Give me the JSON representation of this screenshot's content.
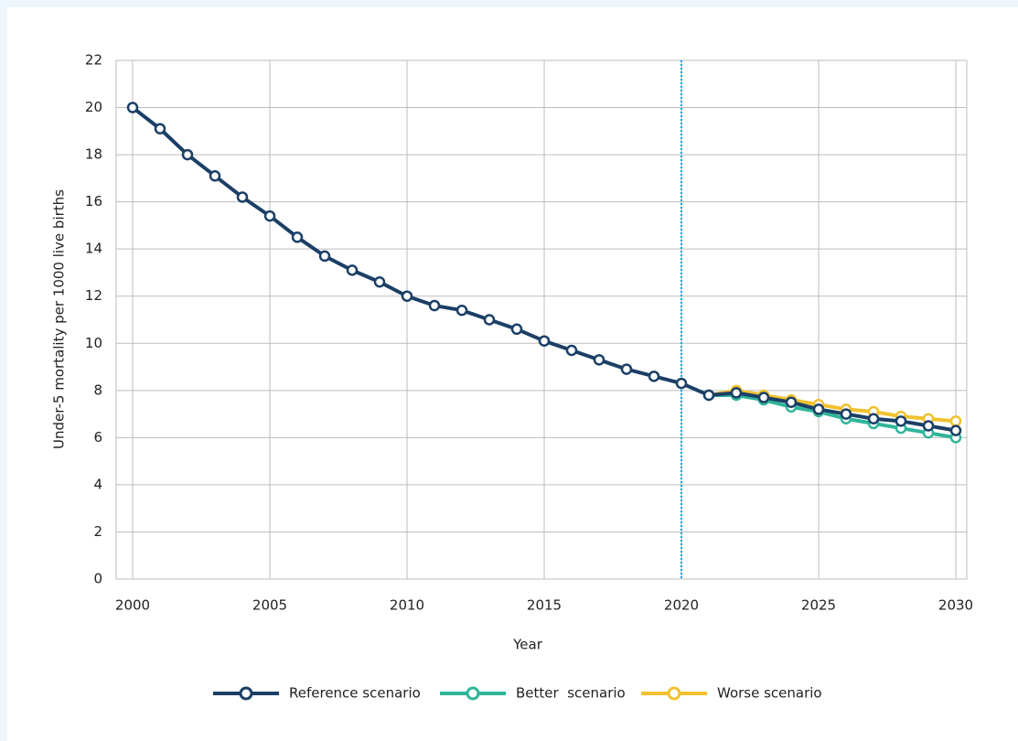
{
  "chart_data": {
    "type": "line",
    "x_label": "Year",
    "y_label": "Under-5 mortality per 1000 live births",
    "x": [
      2000,
      2001,
      2002,
      2003,
      2004,
      2005,
      2006,
      2007,
      2008,
      2009,
      2010,
      2011,
      2012,
      2013,
      2014,
      2015,
      2016,
      2017,
      2018,
      2019,
      2020,
      2021,
      2022,
      2023,
      2024,
      2025,
      2026,
      2027,
      2028,
      2029,
      2030
    ],
    "series": [
      {
        "name": "Worse scenario",
        "color": "#f2c12e",
        "values": [
          null,
          null,
          null,
          null,
          null,
          null,
          null,
          null,
          null,
          null,
          null,
          null,
          null,
          null,
          null,
          null,
          null,
          null,
          null,
          null,
          null,
          7.8,
          8.0,
          7.8,
          7.6,
          7.4,
          7.2,
          7.1,
          6.9,
          6.8,
          6.7
        ]
      },
      {
        "name": "Better  scenario",
        "color": "#2fb59a",
        "values": [
          null,
          null,
          null,
          null,
          null,
          null,
          null,
          null,
          null,
          null,
          null,
          null,
          null,
          null,
          null,
          null,
          null,
          null,
          null,
          null,
          null,
          7.8,
          7.8,
          7.6,
          7.3,
          7.1,
          6.8,
          6.6,
          6.4,
          6.2,
          6.0
        ]
      },
      {
        "name": "Reference scenario",
        "color": "#1b3f66",
        "values": [
          20.0,
          19.1,
          18.0,
          17.1,
          16.2,
          15.4,
          14.5,
          13.7,
          13.1,
          12.6,
          12.0,
          11.6,
          11.4,
          11.0,
          10.6,
          10.1,
          9.7,
          9.3,
          8.9,
          8.6,
          8.3,
          7.8,
          7.9,
          7.7,
          7.5,
          7.2,
          7.0,
          6.8,
          6.7,
          6.5,
          6.3
        ]
      }
    ],
    "legend_order": [
      2,
      1,
      0
    ],
    "xlim": [
      1999.4,
      2030.4
    ],
    "xticks": [
      2000,
      2005,
      2010,
      2015,
      2020,
      2025,
      2030
    ],
    "ylim": [
      0,
      22
    ],
    "yticks": [
      0,
      2,
      4,
      6,
      8,
      10,
      12,
      14,
      16,
      18,
      20,
      22
    ],
    "grid": true,
    "reference_line": {
      "x": 2020,
      "color": "#1aa3d9"
    },
    "legend": "bottom"
  }
}
